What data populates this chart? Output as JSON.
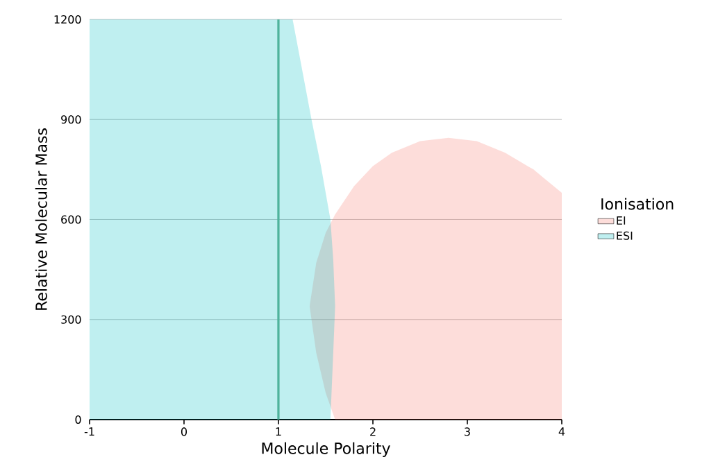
{
  "chart_data": {
    "type": "area",
    "xlabel": "Molecule Polarity",
    "ylabel": "Relative Molecular Mass",
    "legend_title": "Ionisation",
    "legend": "right",
    "grid": "y",
    "xlim": [
      -1,
      4
    ],
    "ylim": [
      0,
      1200
    ],
    "xticks": [
      -1,
      0,
      1,
      2,
      3,
      4
    ],
    "yticks": [
      0,
      300,
      600,
      900,
      1200
    ],
    "series": [
      {
        "name": "EI",
        "color": "#f8766d",
        "x": [
          1.6,
          1.5,
          1.4,
          1.33,
          1.4,
          1.5,
          1.6,
          1.8,
          2.0,
          2.2,
          2.5,
          2.8,
          3.1,
          3.4,
          3.7,
          4.0,
          4.0
        ],
        "values": [
          0,
          80,
          200,
          340,
          470,
          560,
          615,
          700,
          760,
          800,
          835,
          845,
          835,
          800,
          750,
          680,
          0
        ]
      },
      {
        "name": "ESI",
        "color": "#00bfc4",
        "x": [
          -1,
          -1,
          1.15,
          1.25,
          1.35,
          1.45,
          1.55,
          1.58,
          1.6,
          1.58,
          1.55
        ],
        "values": [
          0,
          1200,
          1200,
          1050,
          900,
          760,
          600,
          480,
          340,
          200,
          0
        ]
      }
    ],
    "ref_lines": [
      {
        "axis": "x",
        "value": 1,
        "color": "#4fb39c"
      }
    ]
  }
}
